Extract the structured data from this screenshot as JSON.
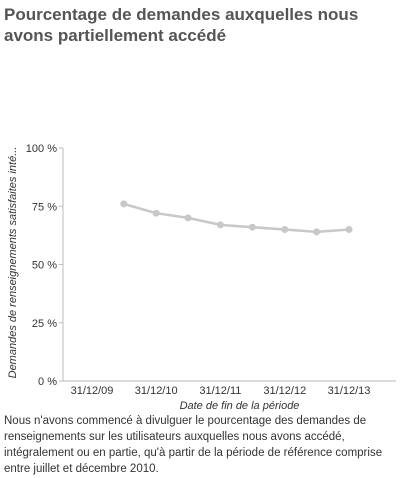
{
  "title": "Pourcentage de demandes auxquelles nous avons partiellement accédé",
  "note": "Nous n'avons commencé à divulguer le pourcentage des demandes de renseignements sur les utilisateurs auxquelles nous avons accédé, intégralement ou en partie, qu'à partir de la période de référence comprise entre juillet et décembre 2010.",
  "colors": {
    "line": "#c8c8c8",
    "axis": "#bbbbbb",
    "text": "#333333"
  },
  "chart_data": {
    "type": "line",
    "title": "Pourcentage de demandes auxquelles nous avons partiellement accédé",
    "xlabel": "Date de fin de la période",
    "ylabel": "Demandes de renseignements satisfaites inté...",
    "x_ticks": [
      "31/12/09",
      "31/12/10",
      "31/12/11",
      "31/12/12",
      "31/12/13"
    ],
    "y_ticks": [
      "0 %",
      "25 %",
      "50 %",
      "75 %",
      "100 %"
    ],
    "ylim": [
      0,
      100
    ],
    "x": [
      "30/06/10",
      "31/12/10",
      "30/06/11",
      "31/12/11",
      "30/06/12",
      "31/12/12",
      "30/06/13",
      "31/12/13"
    ],
    "series": [
      {
        "values": [
          76,
          72,
          70,
          67,
          66,
          65,
          64,
          65
        ]
      }
    ],
    "grid": false,
    "legend": "none"
  }
}
